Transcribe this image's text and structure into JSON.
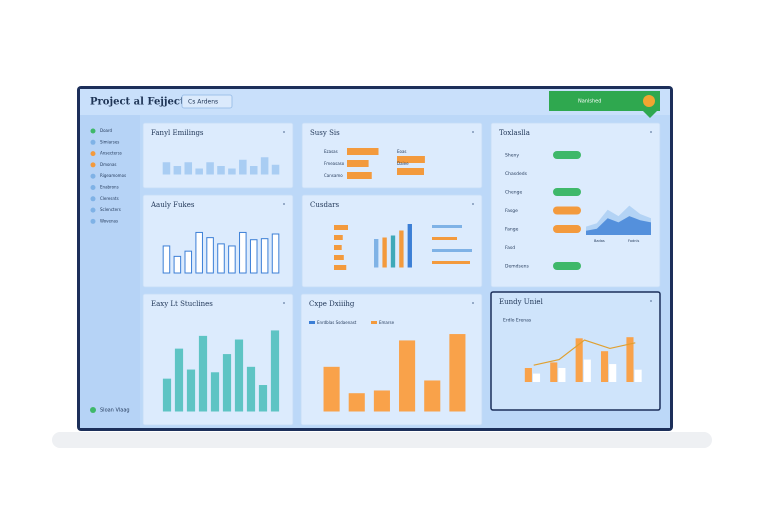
{
  "header": {
    "title": "Project al Fejject",
    "dropdown": "Cs Ardens",
    "badge": "Nanlshed"
  },
  "sidebar": {
    "items": [
      {
        "label": "Doard",
        "color": "#3fb86a"
      },
      {
        "label": "Simiarses",
        "color": "#7fb2e6"
      },
      {
        "label": "Ansecterss",
        "color": "#f39a3d"
      },
      {
        "label": "Dmonas",
        "color": "#f39a3d"
      },
      {
        "label": "Rigeamomos",
        "color": "#7fb2e6"
      },
      {
        "label": "Enabrons",
        "color": "#7fb2e6"
      },
      {
        "label": "Cleresnts",
        "color": "#7fb2e6"
      },
      {
        "label": "Sclencters",
        "color": "#7fb2e6"
      },
      {
        "label": "Wovenas",
        "color": "#7fb2e6"
      }
    ],
    "footer": "Sloan Vlaag"
  },
  "panels": [
    {
      "type": "vbar",
      "title": "Fanyl Emilings",
      "color": "#a9cdf3",
      "stroke": "#a9cdf3",
      "values": [
        45,
        30,
        45,
        20,
        45,
        30,
        20,
        55,
        30,
        65,
        35
      ]
    },
    {
      "type": "hbar",
      "title": "Susy Sis",
      "color": "#f39a3d",
      "categories": [
        "Ezasas",
        "Fmeasaso",
        "Cansamo",
        "Eoas",
        "Daiee"
      ],
      "values": [
        70,
        48,
        55,
        62,
        60
      ]
    },
    {
      "type": "list",
      "title": "Toxlaslla",
      "items": [
        {
          "label": "Sheny",
          "color": "#3fb86a"
        },
        {
          "label": "Chasdeds",
          "color": null
        },
        {
          "label": "Chenge",
          "color": "#3fb86a"
        },
        {
          "label": "Fasge",
          "color": "#f39a3d"
        },
        {
          "label": "Fange",
          "color": "#f39a3d"
        },
        {
          "label": "Fasd",
          "color": null
        },
        {
          "label": "Demdsens",
          "color": "#3fb86a"
        }
      ],
      "area": [
        {
          "color": "#a9cdf3",
          "values": [
            20,
            28,
            60,
            45,
            70,
            50,
            40
          ]
        },
        {
          "color": "#3c7fd6",
          "values": [
            10,
            15,
            40,
            30,
            45,
            35,
            30
          ]
        }
      ],
      "area_labels": [
        "Badas",
        "Fodnls"
      ]
    },
    {
      "type": "vbar",
      "title": "Aauly Fukes",
      "color": "#ffffff",
      "stroke": "#3c7fd6",
      "values": [
        52,
        32,
        42,
        78,
        68,
        56,
        52,
        78,
        64,
        66,
        75
      ]
    },
    {
      "type": "mixed",
      "title": "Cusdars",
      "hvalues": [
        40,
        25,
        22,
        28,
        35
      ],
      "hcolor": "#f39a3d",
      "values": [
        55,
        58,
        62,
        72,
        85
      ],
      "colors": [
        "#7fb2e6",
        "#f39a3d",
        "#3fa9b8",
        "#f39a3d",
        "#3c7fd6"
      ],
      "rvalues": [
        30,
        25,
        40,
        38
      ],
      "rcolors": [
        "#7fb2e6",
        "#f39a3d",
        "#7fb2e6",
        "#f39a3d"
      ]
    },
    {
      "type": "vbar",
      "title": "Eaxy Lt Stuclines",
      "color": "#5ec4c4",
      "stroke": "#5ec4c4",
      "values": [
        35,
        68,
        45,
        82,
        42,
        62,
        78,
        48,
        28,
        88
      ]
    },
    {
      "type": "vbar",
      "title": "Cxpe Dxiiihg",
      "color": "#f9a24a",
      "stroke": "#f9a24a",
      "values": [
        48,
        19,
        22,
        77,
        33,
        84
      ],
      "legend": [
        {
          "name": "Enrdblas Ssdaenast",
          "color": "#3c7fd6"
        },
        {
          "name": "Emarse",
          "color": "#f39a3d"
        }
      ]
    },
    {
      "type": "combo",
      "title": "Eundy Uniel",
      "subtitle": "Erdlo Erenas",
      "series": [
        {
          "color": "#f9a24a",
          "values": [
            25,
            35,
            78,
            55,
            80
          ]
        },
        {
          "color": "#ffffff",
          "values": [
            15,
            25,
            40,
            32,
            22
          ]
        }
      ],
      "line": {
        "color": "#e0a030",
        "values": [
          30,
          40,
          75,
          60,
          70
        ]
      }
    }
  ]
}
